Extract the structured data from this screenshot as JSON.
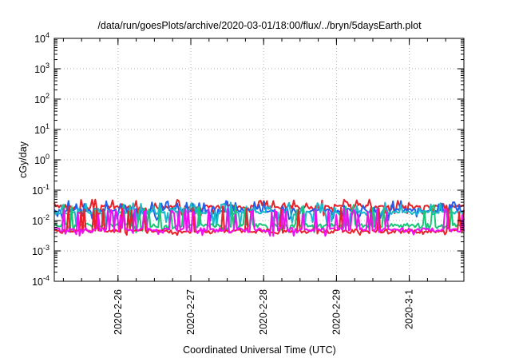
{
  "chart_data": {
    "type": "line",
    "title": "/data/run/goesPlots/archive/2020-03-01/18:00/flux/../bryn/5daysEarth.plot",
    "xlabel": "Coordinated Universal Time (UTC)",
    "ylabel": "cGy/day",
    "y_scale": "log",
    "ylim": [
      0.0001,
      10000
    ],
    "y_ticks": [
      {
        "value": 0.0001,
        "base": "10",
        "exp": "-4"
      },
      {
        "value": 0.001,
        "base": "10",
        "exp": "-3"
      },
      {
        "value": 0.01,
        "base": "10",
        "exp": "-2"
      },
      {
        "value": 0.1,
        "base": "10",
        "exp": "-1"
      },
      {
        "value": 1,
        "base": "10",
        "exp": "0"
      },
      {
        "value": 10,
        "base": "10",
        "exp": "1"
      },
      {
        "value": 100,
        "base": "10",
        "exp": "2"
      },
      {
        "value": 1000,
        "base": "10",
        "exp": "3"
      },
      {
        "value": 10000,
        "base": "10",
        "exp": "4"
      }
    ],
    "xlim": [
      "2020-02-25 03:00",
      "2020-03-01 18:00"
    ],
    "x_ticks": [
      {
        "label": "2020-2-26",
        "value": "2020-02-26 00:00"
      },
      {
        "label": "2020-2-27",
        "value": "2020-02-27 00:00"
      },
      {
        "label": "2020-2-28",
        "value": "2020-02-28 00:00"
      },
      {
        "label": "2020-2-29",
        "value": "2020-02-29 00:00"
      },
      {
        "label": "2020-3-1",
        "value": "2020-03-01 00:00"
      }
    ],
    "grid": true,
    "series": [
      {
        "color": "#e8222a",
        "baseline": 0.028,
        "peak": 0.05,
        "dip": 0.018,
        "seed": 3
      },
      {
        "color": "#2060ee",
        "baseline": 0.022,
        "peak": 0.045,
        "dip": 0.012,
        "seed": 7
      },
      {
        "color": "#1ab8c8",
        "baseline": 0.018,
        "peak": 0.04,
        "dip": 0.008,
        "seed": 11
      },
      {
        "color": "#18c878",
        "baseline": 0.007,
        "peak": 0.035,
        "dip": 0.005,
        "seed": 19
      },
      {
        "color": "#e8222a",
        "baseline": 0.0045,
        "peak": 0.03,
        "dip": 0.004,
        "seed": 23
      },
      {
        "color": "#ee10ee",
        "baseline": 0.005,
        "peak": 0.025,
        "dip": 0.0038,
        "seed": 29
      }
    ]
  }
}
